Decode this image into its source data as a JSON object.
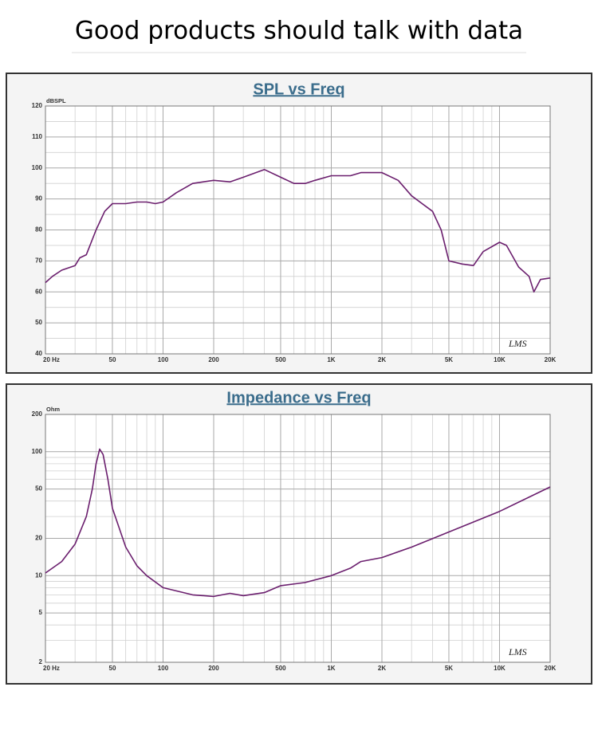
{
  "header": "Good products should talk with data",
  "chart_data": [
    {
      "type": "line",
      "title": "SPL vs Freq",
      "y_label": "dBSPL",
      "annotation": "LMS",
      "xscale": "log",
      "yscale": "linear",
      "color": "#6b1f6e",
      "grid": true,
      "xlim": [
        20,
        20000
      ],
      "ylim": [
        40,
        120
      ],
      "xticks": [
        {
          "value": 20,
          "label": "20 Hz"
        },
        50,
        100,
        200,
        500,
        {
          "value": 1000,
          "label": "1K"
        },
        {
          "value": 2000,
          "label": "2K"
        },
        {
          "value": 5000,
          "label": "5K"
        },
        {
          "value": 10000,
          "label": "10K"
        },
        {
          "value": 20000,
          "label": "20K"
        }
      ],
      "yticks": [
        40,
        50,
        60,
        70,
        80,
        90,
        100,
        110,
        120
      ],
      "x_gridlines": [
        30,
        40,
        60,
        70,
        80,
        90,
        300,
        400,
        600,
        700,
        800,
        900,
        3000,
        4000,
        6000,
        7000,
        8000,
        9000
      ],
      "y_gridlines": [
        45,
        55,
        65,
        75,
        85,
        95,
        105,
        115
      ],
      "x": [
        20,
        22,
        25,
        30,
        32,
        35,
        40,
        45,
        50,
        60,
        70,
        80,
        90,
        100,
        120,
        150,
        200,
        250,
        300,
        400,
        500,
        600,
        700,
        800,
        1000,
        1300,
        1500,
        2000,
        2500,
        3000,
        4000,
        4500,
        5000,
        6000,
        7000,
        8000,
        10000,
        11000,
        13000,
        15000,
        16000,
        17500,
        20000
      ],
      "values": [
        63,
        65,
        67,
        68.5,
        71,
        72,
        80,
        86,
        88.5,
        88.5,
        89,
        89,
        88.5,
        89,
        92,
        95,
        96,
        95.5,
        97,
        99.5,
        97,
        95,
        95,
        96,
        97.5,
        97.5,
        98.5,
        98.5,
        96,
        91,
        86,
        80,
        70,
        69,
        68.5,
        73,
        76,
        75,
        68,
        65,
        60,
        64,
        64.5
      ]
    },
    {
      "type": "line",
      "title": "Impedance vs Freq",
      "y_label": "Ohm",
      "annotation": "LMS",
      "xscale": "log",
      "yscale": "log",
      "color": "#6b1f6e",
      "grid": true,
      "xlim": [
        20,
        20000
      ],
      "ylim": [
        2,
        200
      ],
      "xticks": [
        {
          "value": 20,
          "label": "20 Hz"
        },
        50,
        100,
        200,
        500,
        {
          "value": 1000,
          "label": "1K"
        },
        {
          "value": 2000,
          "label": "2K"
        },
        {
          "value": 5000,
          "label": "5K"
        },
        {
          "value": 10000,
          "label": "10K"
        },
        {
          "value": 20000,
          "label": "20K"
        }
      ],
      "yticks": [
        2,
        5,
        10,
        20,
        50,
        100,
        200
      ],
      "x_gridlines": [
        30,
        40,
        60,
        70,
        80,
        90,
        300,
        400,
        600,
        700,
        800,
        900,
        3000,
        4000,
        6000,
        7000,
        8000,
        9000
      ],
      "y_gridlines": [
        3,
        4,
        6,
        7,
        8,
        9,
        30,
        40,
        60,
        70,
        80,
        90
      ],
      "x": [
        20,
        25,
        30,
        35,
        38,
        40,
        42,
        44,
        47,
        50,
        60,
        70,
        80,
        100,
        150,
        200,
        250,
        300,
        400,
        500,
        700,
        1000,
        1300,
        1500,
        2000,
        3000,
        5000,
        10000,
        20000
      ],
      "values": [
        10.5,
        13,
        18,
        30,
        50,
        80,
        105,
        95,
        60,
        35,
        17,
        12,
        10,
        8,
        7,
        6.8,
        7.2,
        6.9,
        7.3,
        8.3,
        8.8,
        10,
        11.5,
        13,
        14,
        17,
        22.5,
        33,
        52
      ]
    }
  ]
}
